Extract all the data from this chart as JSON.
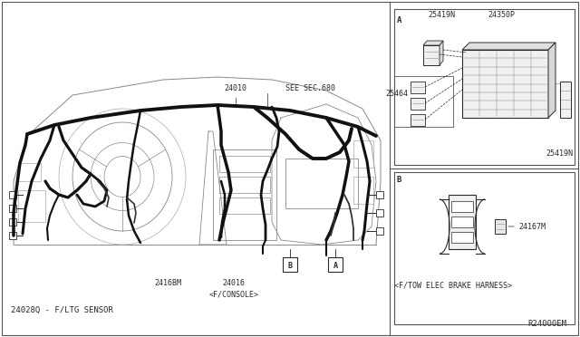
{
  "bg_color": "#ffffff",
  "line_color": "#2a2a2a",
  "gray_line": "#888888",
  "light_gray": "#aaaaaa",
  "panel_bg": "#f8f8f8",
  "labels": {
    "main_part": "24010",
    "see_sec": "SEE SEC.680",
    "part_2416bm": "2416BM",
    "part_24016": "24016",
    "part_console": "<F/CONSOLE>",
    "part_24028q": "24028Q - F/LTG SENSOR",
    "ref_a": "A",
    "ref_b": "B",
    "section_a_label": "A",
    "section_b_label": "B",
    "part_25419n_top": "25419N",
    "part_24350p": "24350P",
    "part_25464": "25464",
    "part_25419n_bot": "25419N",
    "part_24167m": "24167M",
    "brake_harness": "<F/TOW ELEC BRAKE HARNESS>",
    "ref_code": "R24000EM"
  },
  "fs": 6.0,
  "fs_ref": 6.5
}
